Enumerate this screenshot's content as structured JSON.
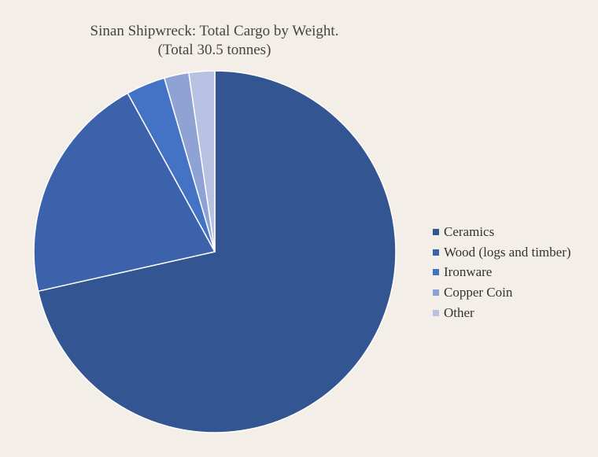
{
  "chart_data": {
    "type": "pie",
    "title": "Sinan Shipwreck: Total Cargo by Weight.",
    "subtitle": "(Total 30.5 tonnes)",
    "legend_position": "right",
    "slices": [
      {
        "label": "Ceramics",
        "value": 71.5,
        "color": "#335591"
      },
      {
        "label": "Wood (logs and timber)",
        "value": 20.5,
        "color": "#3b62ab"
      },
      {
        "label": "Ironware",
        "value": 3.5,
        "color": "#4472c4"
      },
      {
        "label": "Copper Coin",
        "value": 2.2,
        "color": "#8fa2d4"
      },
      {
        "label": "Other",
        "value": 2.3,
        "color": "#b7c2e3"
      }
    ]
  }
}
